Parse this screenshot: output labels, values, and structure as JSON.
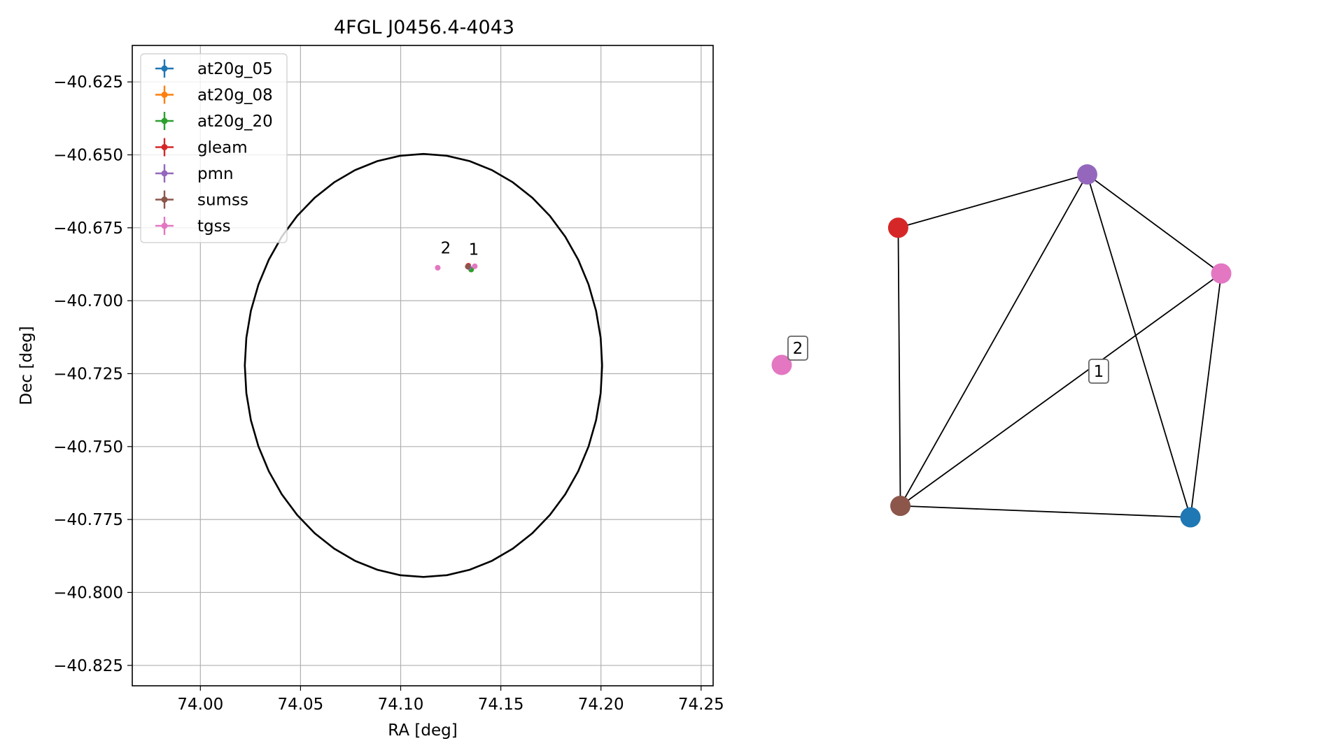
{
  "chart_data": [
    {
      "type": "scatter",
      "title": "4FGL J0456.4-4043",
      "xlabel": "RA [deg]",
      "ylabel": "Dec [deg]",
      "xlim": [
        73.966,
        74.256
      ],
      "ylim": [
        -40.832,
        -40.6125
      ],
      "xticks": [
        74.0,
        74.05,
        74.1,
        74.15,
        74.2,
        74.25
      ],
      "xtick_labels": [
        "74.00",
        "74.05",
        "74.10",
        "74.15",
        "74.20",
        "74.25"
      ],
      "yticks": [
        -40.625,
        -40.65,
        -40.675,
        -40.7,
        -40.725,
        -40.75,
        -40.775,
        -40.8,
        -40.825
      ],
      "ytick_labels": [
        "−40.625",
        "−40.650",
        "−40.675",
        "−40.700",
        "−40.725",
        "−40.750",
        "−40.775",
        "−40.800",
        "−40.825"
      ],
      "grid": true,
      "legend_position": "upper-left",
      "series": [
        {
          "name": "at20g_05",
          "color": "#1f77b4",
          "points": [
            {
              "x": 74.1352,
              "y": -40.6893
            }
          ]
        },
        {
          "name": "at20g_08",
          "color": "#ff7f0e",
          "points": [
            {
              "x": 74.1352,
              "y": -40.6893
            }
          ]
        },
        {
          "name": "at20g_20",
          "color": "#2ca02c",
          "points": [
            {
              "x": 74.1352,
              "y": -40.6893
            }
          ]
        },
        {
          "name": "gleam",
          "color": "#d62728",
          "points": [
            {
              "x": 74.1338,
              "y": -40.688
            }
          ]
        },
        {
          "name": "pmn",
          "color": "#9467bd",
          "points": [
            {
              "x": 74.134,
              "y": -40.6885
            }
          ]
        },
        {
          "name": "sumss",
          "color": "#8c564b",
          "points": [
            {
              "x": 74.1335,
              "y": -40.6883
            }
          ]
        },
        {
          "name": "tgss",
          "color": "#e377c2",
          "points": [
            {
              "x": 74.137,
              "y": -40.6882
            },
            {
              "x": 74.1185,
              "y": -40.6887
            }
          ]
        }
      ],
      "annotations": [
        {
          "text": "1",
          "x": 74.1365,
          "y": -40.6843
        },
        {
          "text": "2",
          "x": 74.1225,
          "y": -40.6838
        }
      ],
      "ellipse": {
        "center": [
          74.1114,
          -40.7222
        ],
        "ra_semi_axis": 0.0892,
        "dec_semi_axis": 0.0725,
        "color": "#000000"
      }
    },
    {
      "type": "network",
      "nodes": [
        {
          "id": "pmn",
          "color": "#9467bd",
          "x": 0.695,
          "y": 0.9
        },
        {
          "id": "gleam",
          "color": "#d62728",
          "x": 0.265,
          "y": 0.76
        },
        {
          "id": "tgss",
          "color": "#e377c2",
          "x": 1.0,
          "y": 0.64
        },
        {
          "id": "tgss_2",
          "color": "#e377c2",
          "x": 0.0,
          "y": 0.4
        },
        {
          "id": "sumss",
          "color": "#8c564b",
          "x": 0.27,
          "y": 0.03
        },
        {
          "id": "at20g_05",
          "color": "#1f77b4",
          "x": 0.93,
          "y": 0.0
        }
      ],
      "edges": [
        [
          "gleam",
          "pmn"
        ],
        [
          "pmn",
          "tgss"
        ],
        [
          "pmn",
          "sumss"
        ],
        [
          "pmn",
          "at20g_05"
        ],
        [
          "gleam",
          "sumss"
        ],
        [
          "tgss",
          "sumss"
        ],
        [
          "tgss",
          "at20g_05"
        ],
        [
          "sumss",
          "at20g_05"
        ]
      ],
      "labels": [
        {
          "text": "1",
          "node": "cluster_1"
        },
        {
          "text": "2",
          "node": "tgss_2"
        }
      ]
    }
  ]
}
